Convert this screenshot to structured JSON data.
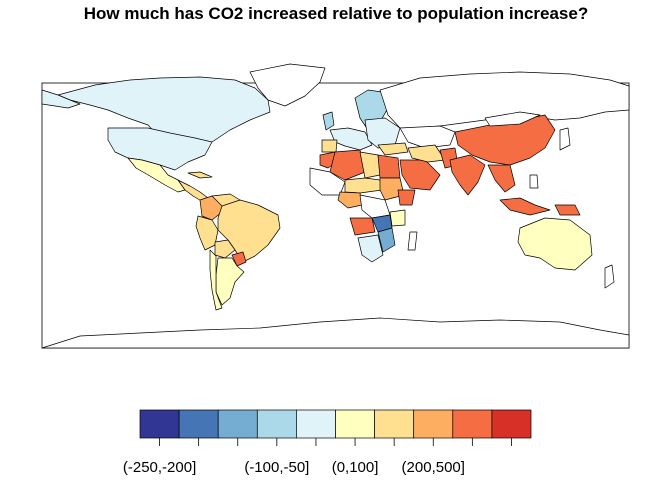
{
  "title": "How much has CO2 increased relative to population increase?",
  "legend": {
    "colors": [
      "#313695",
      "#4575b4",
      "#74add1",
      "#abd9e9",
      "#e0f3f8",
      "#ffffbf",
      "#fee090",
      "#fdae61",
      "#f46d43",
      "#d73027"
    ],
    "tick_labels": [
      "(-250,-200]",
      "(-100,-50]",
      "(0,100]",
      "(200,500]"
    ]
  },
  "map_colors": {
    "very_high": "#d73027",
    "high": "#f46d43",
    "mid_high": "#fdae61",
    "moderate": "#fee090",
    "low_positive": "#ffffbf",
    "slight_negative": "#e0f3f8",
    "negative": "#abd9e9",
    "more_negative": "#74add1",
    "strong_negative": "#4575b4",
    "no_data": "#ffffff"
  }
}
